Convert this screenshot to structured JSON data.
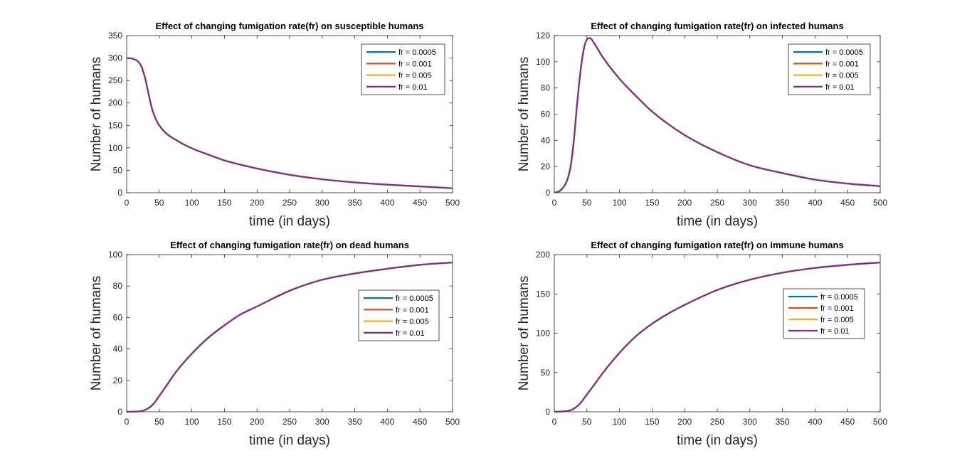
{
  "colors": {
    "series": [
      "#0072BD",
      "#D95319",
      "#EDB120",
      "#7E2F8E"
    ],
    "axis": "#262626",
    "background": "#ffffff"
  },
  "chart_data": [
    {
      "type": "line",
      "title": "Effect of changing fumigation rate(fr) on susceptible humans",
      "xlabel": "time (in days)",
      "ylabel": "Number of humans",
      "xlim": [
        0,
        500
      ],
      "ylim": [
        0,
        350
      ],
      "xticks": [
        0,
        50,
        100,
        150,
        200,
        250,
        300,
        350,
        400,
        450,
        500
      ],
      "yticks": [
        0,
        50,
        100,
        150,
        200,
        250,
        300,
        350
      ],
      "grid": false,
      "legend_position": "top-right",
      "legend": [
        "fr = 0.0005",
        "fr = 0.001",
        "fr = 0.005",
        "fr = 0.01"
      ],
      "x": [
        0,
        10,
        20,
        25,
        30,
        35,
        40,
        45,
        50,
        60,
        75,
        100,
        125,
        150,
        200,
        250,
        300,
        350,
        400,
        450,
        500
      ],
      "series": [
        {
          "name": "fr = 0.0005",
          "values": [
            300,
            298,
            288,
            272,
            245,
            210,
            182,
            163,
            150,
            133,
            118,
            99,
            85,
            72,
            54,
            40,
            30,
            23,
            18,
            14,
            10
          ]
        },
        {
          "name": "fr = 0.001",
          "values": [
            300,
            298,
            288,
            272,
            245,
            210,
            182,
            163,
            150,
            133,
            118,
            99,
            85,
            72,
            54,
            40,
            30,
            23,
            18,
            14,
            10
          ]
        },
        {
          "name": "fr = 0.005",
          "values": [
            300,
            298,
            288,
            272,
            245,
            210,
            182,
            163,
            150,
            133,
            118,
            99,
            85,
            72,
            54,
            40,
            30,
            23,
            18,
            14,
            10
          ]
        },
        {
          "name": "fr = 0.01",
          "values": [
            300,
            298,
            288,
            272,
            245,
            210,
            182,
            163,
            150,
            133,
            118,
            99,
            85,
            72,
            54,
            40,
            30,
            23,
            18,
            14,
            10
          ]
        }
      ]
    },
    {
      "type": "line",
      "title": "Effect of changing fumigation rate(fr) on infected humans",
      "xlabel": "time (in days)",
      "ylabel": "Number of humans",
      "xlim": [
        0,
        500
      ],
      "ylim": [
        0,
        120
      ],
      "xticks": [
        0,
        50,
        100,
        150,
        200,
        250,
        300,
        350,
        400,
        450,
        500
      ],
      "yticks": [
        0,
        20,
        40,
        60,
        80,
        100,
        120
      ],
      "grid": false,
      "legend_position": "top-right",
      "legend": [
        "fr = 0.0005",
        "fr = 0.001",
        "fr = 0.005",
        "fr = 0.01"
      ],
      "x": [
        0,
        10,
        20,
        25,
        30,
        35,
        40,
        45,
        50,
        55,
        60,
        75,
        100,
        125,
        150,
        200,
        250,
        300,
        350,
        400,
        450,
        500
      ],
      "series": [
        {
          "name": "fr = 0.0005",
          "values": [
            0,
            2,
            10,
            20,
            40,
            68,
            92,
            109,
            117,
            118,
            115,
            103,
            87,
            74,
            62,
            44,
            31,
            21,
            15,
            10,
            7,
            5
          ]
        },
        {
          "name": "fr = 0.001",
          "values": [
            0,
            2,
            10,
            20,
            40,
            68,
            92,
            109,
            117,
            118,
            115,
            103,
            87,
            74,
            62,
            44,
            31,
            21,
            15,
            10,
            7,
            5
          ]
        },
        {
          "name": "fr = 0.005",
          "values": [
            0,
            2,
            10,
            20,
            40,
            68,
            92,
            109,
            117,
            118,
            115,
            103,
            87,
            74,
            62,
            44,
            31,
            21,
            15,
            10,
            7,
            5
          ]
        },
        {
          "name": "fr = 0.01",
          "values": [
            0,
            2,
            10,
            20,
            40,
            68,
            92,
            109,
            117,
            118,
            115,
            103,
            87,
            74,
            62,
            44,
            31,
            21,
            15,
            10,
            7,
            5
          ]
        }
      ]
    },
    {
      "type": "line",
      "title": "Effect of changing fumigation rate(fr) on dead humans",
      "xlabel": "time (in days)",
      "ylabel": "Number of humans",
      "xlim": [
        0,
        500
      ],
      "ylim": [
        0,
        100
      ],
      "xticks": [
        0,
        50,
        100,
        150,
        200,
        250,
        300,
        350,
        400,
        450,
        500
      ],
      "yticks": [
        0,
        20,
        40,
        60,
        80,
        100
      ],
      "grid": false,
      "legend_position": "right",
      "legend": [
        "fr = 0.0005",
        "fr = 0.001",
        "fr = 0.005",
        "fr = 0.01"
      ],
      "x": [
        0,
        20,
        30,
        40,
        50,
        60,
        75,
        100,
        125,
        150,
        175,
        200,
        250,
        300,
        350,
        400,
        450,
        500
      ],
      "series": [
        {
          "name": "fr = 0.0005",
          "values": [
            0,
            0.3,
            1.5,
            4.5,
            10,
            16,
            25,
            37,
            47,
            55,
            62,
            67,
            77,
            84,
            88,
            91,
            93.5,
            95
          ]
        },
        {
          "name": "fr = 0.001",
          "values": [
            0,
            0.3,
            1.5,
            4.5,
            10,
            16,
            25,
            37,
            47,
            55,
            62,
            67,
            77,
            84,
            88,
            91,
            93.5,
            95
          ]
        },
        {
          "name": "fr = 0.005",
          "values": [
            0,
            0.3,
            1.5,
            4.5,
            10,
            16,
            25,
            37,
            47,
            55,
            62,
            67,
            77,
            84,
            88,
            91,
            93.5,
            95
          ]
        },
        {
          "name": "fr = 0.01",
          "values": [
            0,
            0.3,
            1.5,
            4.5,
            10,
            16,
            25,
            37,
            47,
            55,
            62,
            67,
            77,
            84,
            88,
            91,
            93.5,
            95
          ]
        }
      ]
    },
    {
      "type": "line",
      "title": "Effect of changing fumigation rate(fr) on immune humans",
      "xlabel": "time (in days)",
      "ylabel": "Number of humans",
      "xlim": [
        0,
        500
      ],
      "ylim": [
        0,
        200
      ],
      "xticks": [
        0,
        50,
        100,
        150,
        200,
        250,
        300,
        350,
        400,
        450,
        500
      ],
      "yticks": [
        0,
        50,
        100,
        150,
        200
      ],
      "grid": false,
      "legend_position": "right",
      "legend": [
        "fr = 0.0005",
        "fr = 0.001",
        "fr = 0.005",
        "fr = 0.01"
      ],
      "x": [
        0,
        20,
        30,
        40,
        50,
        60,
        75,
        100,
        125,
        150,
        175,
        200,
        250,
        300,
        350,
        400,
        450,
        500
      ],
      "series": [
        {
          "name": "fr = 0.0005",
          "values": [
            0,
            1,
            4,
            11,
            22,
            33,
            50,
            75,
            96,
            112,
            125,
            136,
            155,
            168,
            177,
            183,
            187,
            190
          ]
        },
        {
          "name": "fr = 0.001",
          "values": [
            0,
            1,
            4,
            11,
            22,
            33,
            50,
            75,
            96,
            112,
            125,
            136,
            155,
            168,
            177,
            183,
            187,
            190
          ]
        },
        {
          "name": "fr = 0.005",
          "values": [
            0,
            1,
            4,
            11,
            22,
            33,
            50,
            75,
            96,
            112,
            125,
            136,
            155,
            168,
            177,
            183,
            187,
            190
          ]
        },
        {
          "name": "fr = 0.01",
          "values": [
            0,
            1,
            4,
            11,
            22,
            33,
            50,
            75,
            96,
            112,
            125,
            136,
            155,
            168,
            177,
            183,
            187,
            190
          ]
        }
      ]
    }
  ]
}
